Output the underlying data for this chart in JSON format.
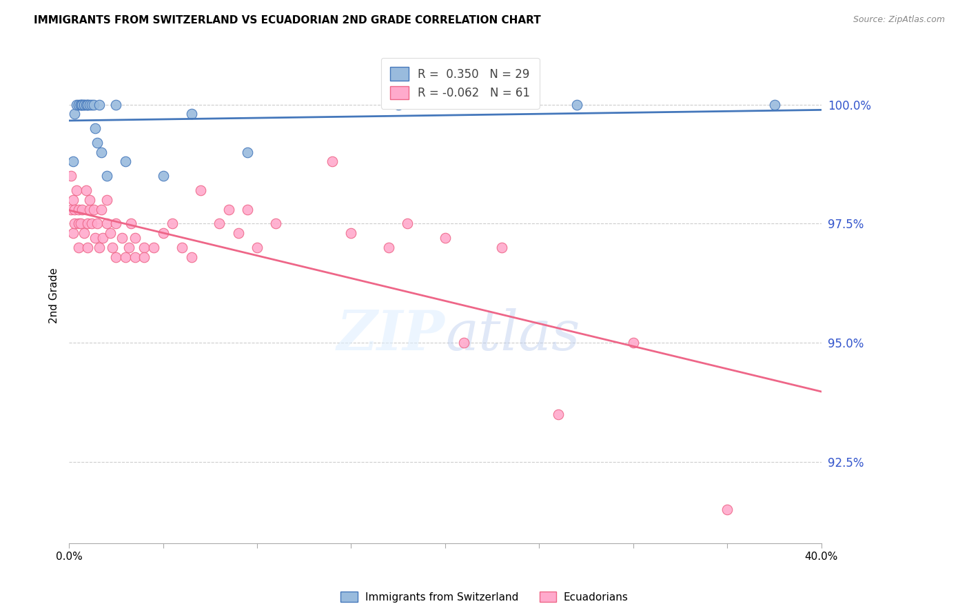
{
  "title": "IMMIGRANTS FROM SWITZERLAND VS ECUADORIAN 2ND GRADE CORRELATION CHART",
  "source": "Source: ZipAtlas.com",
  "ylabel": "2nd Grade",
  "xlim": [
    0.0,
    40.0
  ],
  "ylim": [
    90.8,
    101.2
  ],
  "yticks": [
    92.5,
    95.0,
    97.5,
    100.0
  ],
  "ytick_labels": [
    "92.5%",
    "95.0%",
    "97.5%",
    "100.0%"
  ],
  "xticks": [
    0.0,
    5.0,
    10.0,
    15.0,
    20.0,
    25.0,
    30.0,
    35.0,
    40.0
  ],
  "blue_R": 0.35,
  "blue_N": 29,
  "pink_R": -0.062,
  "pink_N": 61,
  "blue_color": "#99BBDD",
  "pink_color": "#FFAACC",
  "blue_line_color": "#4477BB",
  "pink_line_color": "#EE6688",
  "blue_x": [
    0.2,
    0.3,
    0.4,
    0.5,
    0.6,
    0.6,
    0.7,
    0.7,
    0.8,
    0.8,
    0.9,
    1.0,
    1.0,
    1.1,
    1.2,
    1.3,
    1.4,
    1.5,
    1.6,
    1.7,
    2.0,
    2.5,
    3.0,
    5.0,
    6.5,
    9.5,
    17.5,
    27.0,
    37.5
  ],
  "blue_y": [
    98.8,
    99.8,
    100.0,
    100.0,
    100.0,
    100.0,
    100.0,
    100.0,
    100.0,
    100.0,
    100.0,
    100.0,
    100.0,
    100.0,
    100.0,
    100.0,
    99.5,
    99.2,
    100.0,
    99.0,
    98.5,
    100.0,
    98.8,
    98.5,
    99.8,
    99.0,
    100.0,
    100.0,
    100.0
  ],
  "pink_x": [
    0.1,
    0.1,
    0.2,
    0.2,
    0.3,
    0.3,
    0.4,
    0.5,
    0.5,
    0.5,
    0.6,
    0.7,
    0.8,
    0.9,
    1.0,
    1.0,
    1.1,
    1.1,
    1.2,
    1.3,
    1.4,
    1.5,
    1.6,
    1.7,
    1.8,
    2.0,
    2.0,
    2.2,
    2.3,
    2.5,
    2.5,
    2.8,
    3.0,
    3.2,
    3.3,
    3.5,
    3.5,
    4.0,
    4.0,
    4.5,
    5.0,
    5.5,
    6.0,
    6.5,
    7.0,
    8.0,
    8.5,
    9.0,
    9.5,
    10.0,
    11.0,
    14.0,
    15.0,
    17.0,
    18.0,
    20.0,
    21.0,
    23.0,
    26.0,
    30.0,
    35.0
  ],
  "pink_y": [
    97.8,
    98.5,
    97.3,
    98.0,
    97.5,
    97.8,
    98.2,
    97.0,
    97.5,
    97.8,
    97.5,
    97.8,
    97.3,
    98.2,
    97.0,
    97.5,
    97.8,
    98.0,
    97.5,
    97.8,
    97.2,
    97.5,
    97.0,
    97.8,
    97.2,
    97.5,
    98.0,
    97.3,
    97.0,
    96.8,
    97.5,
    97.2,
    96.8,
    97.0,
    97.5,
    96.8,
    97.2,
    97.0,
    96.8,
    97.0,
    97.3,
    97.5,
    97.0,
    96.8,
    98.2,
    97.5,
    97.8,
    97.3,
    97.8,
    97.0,
    97.5,
    98.8,
    97.3,
    97.0,
    97.5,
    97.2,
    95.0,
    97.0,
    93.5,
    95.0,
    91.5
  ]
}
